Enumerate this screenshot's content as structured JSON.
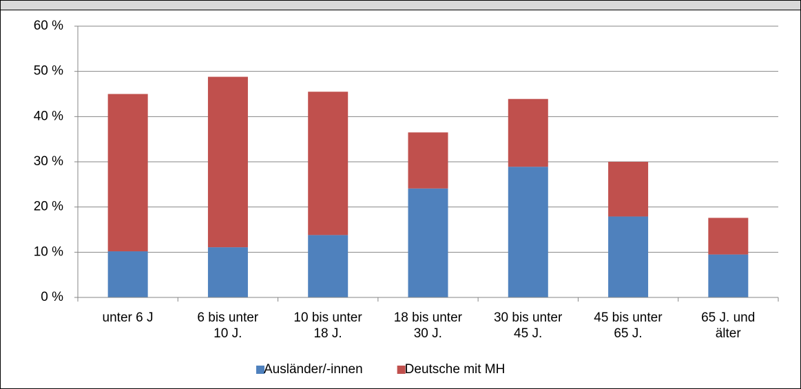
{
  "chart_data": {
    "type": "bar",
    "stacked": true,
    "categories": [
      "unter 6 J",
      "6 bis unter\n10 J.",
      "10 bis unter\n18 J.",
      "18 bis unter\n30 J.",
      "30 bis unter\n45 J.",
      "45 bis unter\n65 J.",
      "65 J. und\nälter"
    ],
    "series": [
      {
        "name": "Ausländer/-innen",
        "color": "#4f81bd",
        "values": [
          10.2,
          11.1,
          13.8,
          24.1,
          28.9,
          17.9,
          9.5
        ]
      },
      {
        "name": "Deutsche mit MH",
        "color": "#c0504d",
        "values": [
          34.8,
          37.7,
          31.7,
          12.4,
          15.0,
          12.1,
          8.1
        ]
      }
    ],
    "ylim": [
      0,
      60
    ],
    "yticks": [
      {
        "value": 0,
        "label": "0 %"
      },
      {
        "value": 10,
        "label": "10 %"
      },
      {
        "value": 20,
        "label": "20 %"
      },
      {
        "value": 30,
        "label": "30 %"
      },
      {
        "value": 40,
        "label": "40 %"
      },
      {
        "value": 50,
        "label": "50 %"
      },
      {
        "value": 60,
        "label": "60 %"
      }
    ],
    "grid": true,
    "legend": "bottom"
  }
}
